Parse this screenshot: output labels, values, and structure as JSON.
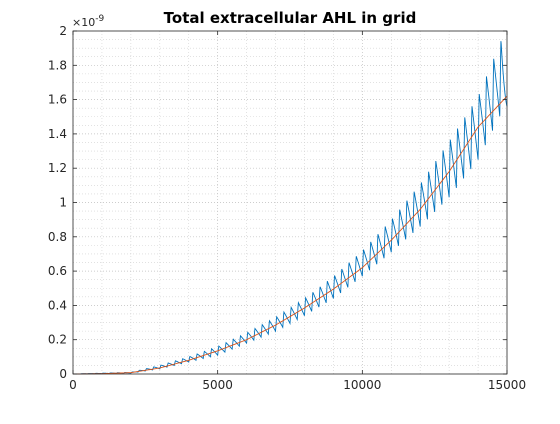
{
  "chart_data": {
    "type": "line",
    "title": "Total extracellular AHL in grid",
    "xlabel": "",
    "ylabel": "",
    "xlim": [
      0,
      15000
    ],
    "ylim": [
      0,
      2e-09
    ],
    "y_exponent_label": "×10",
    "y_exponent_power": "-9",
    "x_ticks": [
      0,
      5000,
      10000,
      15000
    ],
    "x_tick_labels": [
      "0",
      "5000",
      "10000",
      "15000"
    ],
    "y_ticks": [
      0,
      0.2,
      0.4,
      0.6,
      0.8,
      1,
      1.2,
      1.4,
      1.6,
      1.8,
      2
    ],
    "y_tick_labels": [
      "0",
      "0.2",
      "0.4",
      "0.6",
      "0.8",
      "1",
      "1.2",
      "1.4",
      "1.6",
      "1.8",
      "2"
    ],
    "grid": "major and minor, dotted",
    "legend": "none",
    "series": [
      {
        "color": "#0072BD",
        "style": "sawtooth oscillation around smooth trend, period ~250, amplitude growing with x",
        "x": [
          0,
          2000,
          3000,
          4000,
          5000,
          6000,
          7000,
          8000,
          9000,
          10000,
          11000,
          12000,
          13000,
          14000,
          14800,
          15000
        ],
        "y_min_e9": [
          0,
          0.005,
          0.03,
          0.07,
          0.11,
          0.18,
          0.25,
          0.34,
          0.44,
          0.57,
          0.71,
          0.86,
          1.03,
          1.25,
          1.52,
          1.56
        ],
        "y_max_e9": [
          0,
          0.01,
          0.05,
          0.1,
          0.16,
          0.24,
          0.33,
          0.44,
          0.57,
          0.72,
          0.9,
          1.11,
          1.36,
          1.62,
          1.95,
          1.75
        ]
      },
      {
        "color": "#D95319",
        "style": "smooth trend",
        "x": [
          0,
          1000,
          2000,
          3000,
          4000,
          5000,
          6000,
          7000,
          8000,
          9000,
          10000,
          11000,
          12000,
          13000,
          14000,
          15000
        ],
        "y_e9": [
          0,
          0.002,
          0.008,
          0.035,
          0.08,
          0.135,
          0.2,
          0.285,
          0.385,
          0.495,
          0.62,
          0.78,
          0.96,
          1.18,
          1.44,
          1.62
        ]
      }
    ]
  }
}
